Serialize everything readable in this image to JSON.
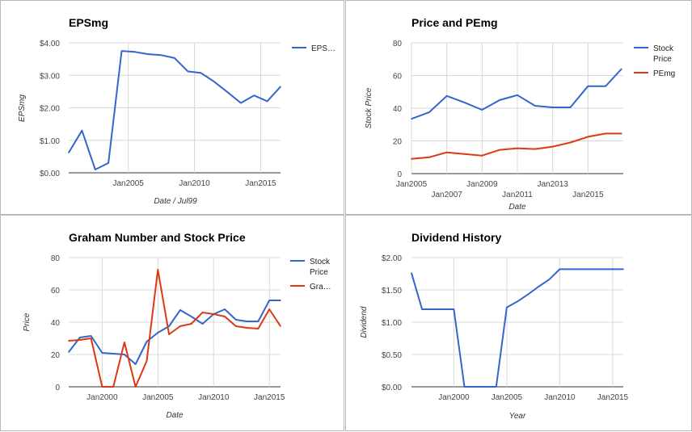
{
  "chart_data": [
    {
      "type": "line",
      "title": "EPSmg",
      "xlabel": "Date / Jul99",
      "ylabel": "EPSmg",
      "x_ticks": [
        "Jan2005",
        "Jan2010",
        "Jan2015"
      ],
      "x_tick_years": [
        2005,
        2010,
        2015
      ],
      "xlim": [
        2000.5,
        2016.5
      ],
      "y_ticks": [
        "$0.00",
        "$1.00",
        "$2.00",
        "$3.00",
        "$4.00"
      ],
      "ylim": [
        0,
        4
      ],
      "grid": true,
      "legend_position": "right",
      "series": [
        {
          "name": "EPS…",
          "color": "#3366cc",
          "x": [
            2000.5,
            2001.5,
            2002.5,
            2003.5,
            2004.5,
            2005.5,
            2006.5,
            2007.5,
            2008.5,
            2009.5,
            2010.5,
            2011.5,
            2012.5,
            2013.5,
            2014.5,
            2015.5,
            2016.5
          ],
          "values": [
            0.62,
            1.3,
            0.1,
            0.3,
            3.75,
            3.72,
            3.65,
            3.62,
            3.53,
            3.12,
            3.07,
            2.8,
            2.48,
            2.15,
            2.38,
            2.2,
            2.65
          ]
        }
      ]
    },
    {
      "type": "line",
      "title": "Price and PEmg",
      "xlabel": "Date",
      "ylabel": "Stock Price",
      "x_ticks_upper": [
        "Jan2005",
        "Jan2009",
        "Jan2013"
      ],
      "x_ticks_upper_years": [
        2005,
        2009,
        2013
      ],
      "x_ticks_lower": [
        "Jan2007",
        "Jan2011",
        "Jan2015"
      ],
      "x_ticks_lower_years": [
        2007,
        2011,
        2015
      ],
      "xlim": [
        2005,
        2017
      ],
      "y_ticks": [
        "0",
        "20",
        "40",
        "60",
        "80"
      ],
      "ylim": [
        0,
        80
      ],
      "grid": true,
      "legend_position": "right",
      "series": [
        {
          "name": "Stock Price",
          "color": "#3366cc",
          "x": [
            2005,
            2006,
            2007,
            2008,
            2009,
            2010,
            2011,
            2012,
            2013,
            2014,
            2015,
            2016,
            2016.9
          ],
          "values": [
            33.5,
            37.5,
            47.5,
            43.5,
            39.0,
            45.0,
            48.0,
            41.5,
            40.5,
            40.5,
            53.5,
            53.5,
            64.0
          ]
        },
        {
          "name": "PEmg",
          "color": "#dc3912",
          "x": [
            2005,
            2006,
            2007,
            2008,
            2009,
            2010,
            2011,
            2012,
            2013,
            2014,
            2015,
            2016,
            2016.9
          ],
          "values": [
            9.0,
            10.0,
            13.0,
            12.0,
            11.0,
            14.5,
            15.5,
            15.0,
            16.5,
            19.0,
            22.5,
            24.5,
            24.5
          ]
        }
      ]
    },
    {
      "type": "line",
      "title": "Graham Number and Stock Price",
      "xlabel": "Date",
      "ylabel": "Price",
      "x_ticks": [
        "Jan2000",
        "Jan2005",
        "Jan2010",
        "Jan2015"
      ],
      "x_tick_years": [
        2000,
        2005,
        2010,
        2015
      ],
      "xlim": [
        1997,
        2016
      ],
      "y_ticks": [
        "0",
        "20",
        "40",
        "60",
        "80"
      ],
      "ylim": [
        0,
        80
      ],
      "grid": true,
      "legend_position": "right",
      "series": [
        {
          "name": "Stock Price",
          "color": "#3366cc",
          "x": [
            1997,
            1998,
            1999,
            2000,
            2001,
            2002,
            2003,
            2004,
            2005,
            2006,
            2007,
            2008,
            2009,
            2010,
            2011,
            2012,
            2013,
            2014,
            2015,
            2016
          ],
          "values": [
            21.5,
            30.5,
            31.5,
            21.0,
            20.5,
            20.0,
            14.0,
            28.0,
            33.5,
            37.5,
            47.5,
            43.5,
            39.0,
            45.0,
            48.0,
            41.5,
            40.5,
            40.5,
            53.5,
            53.5
          ]
        },
        {
          "name": "Gra…",
          "color": "#dc3912",
          "x": [
            1997,
            1998,
            1999,
            2000,
            2001,
            2002,
            2003,
            2004,
            2005,
            2006,
            2007,
            2008,
            2009,
            2010,
            2011,
            2012,
            2013,
            2014,
            2015,
            2016
          ],
          "values": [
            28.5,
            29.0,
            30.0,
            0.0,
            0.0,
            27.5,
            0.0,
            16.0,
            72.5,
            32.5,
            37.5,
            39.0,
            46.0,
            45.0,
            43.5,
            37.5,
            36.5,
            36.0,
            48.0,
            37.5
          ]
        }
      ]
    },
    {
      "type": "line",
      "title": "Dividend History",
      "xlabel": "Year",
      "ylabel": "Dividend",
      "x_ticks": [
        "Jan2000",
        "Jan2005",
        "Jan2010",
        "Jan2015"
      ],
      "x_tick_years": [
        2000,
        2005,
        2010,
        2015
      ],
      "xlim": [
        1996,
        2016
      ],
      "y_ticks": [
        "$0.00",
        "$0.50",
        "$1.00",
        "$1.50",
        "$2.00"
      ],
      "ylim": [
        0,
        2
      ],
      "grid": true,
      "series": [
        {
          "color": "#3366cc",
          "x": [
            1996,
            1997,
            1998,
            1999,
            2000,
            2001,
            2002,
            2003,
            2004,
            2005,
            2006,
            2007,
            2008,
            2009,
            2010,
            2011,
            2012,
            2013,
            2014,
            2015,
            2016
          ],
          "values": [
            1.76,
            1.2,
            1.2,
            1.2,
            1.2,
            0.0,
            0.0,
            0.0,
            0.0,
            1.23,
            1.32,
            1.43,
            1.55,
            1.66,
            1.82,
            1.82,
            1.82,
            1.82,
            1.82,
            1.82,
            1.82
          ]
        }
      ]
    }
  ]
}
